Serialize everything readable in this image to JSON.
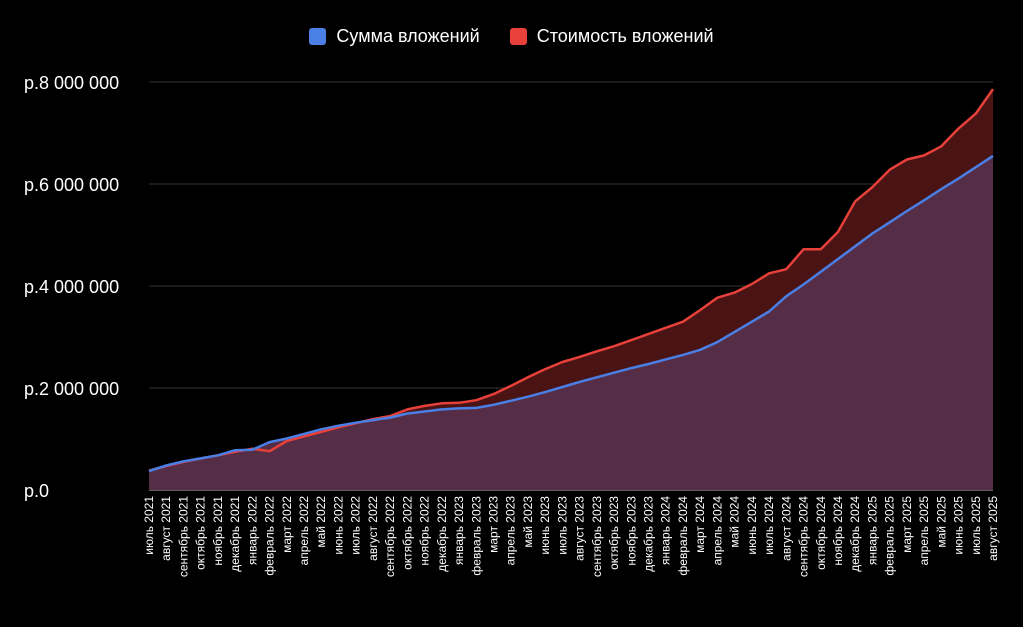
{
  "chart_data": {
    "type": "area",
    "legend_position": "top",
    "grid": true,
    "ylim": [
      0,
      8000000
    ],
    "y_ticks": [
      {
        "value": 0,
        "label": "р.0"
      },
      {
        "value": 2000000,
        "label": "р.2 000 000"
      },
      {
        "value": 4000000,
        "label": "р.4 000 000"
      },
      {
        "value": 6000000,
        "label": "р.6 000 000"
      },
      {
        "value": 8000000,
        "label": "р.8 000 000"
      }
    ],
    "categories": [
      "июль 2021",
      "август 2021",
      "сентябрь 2021",
      "октябрь 2021",
      "ноябрь 2021",
      "декабрь 2021",
      "январь 2022",
      "февраль 2022",
      "март 2022",
      "апрель 2022",
      "май 2022",
      "июнь 2022",
      "июль 2022",
      "август 2022",
      "сентябрь 2022",
      "октябрь 2022",
      "ноябрь 2022",
      "декабрь 2022",
      "январь 2023",
      "февраль 2023",
      "март 2023",
      "апрель 2023",
      "май 2023",
      "июнь 2023",
      "июль 2023",
      "август 2023",
      "сентябрь 2023",
      "октябрь 2023",
      "ноябрь 2023",
      "декабрь 2023",
      "январь 2024",
      "февраль 2024",
      "март 2024",
      "апрель 2024",
      "май 2024",
      "июнь 2024",
      "июль 2024",
      "август 2024",
      "сентябрь 2024",
      "октябрь 2024",
      "ноябрь 2024",
      "декабрь 2024",
      "январь 2025",
      "февраль 2025",
      "март 2025",
      "апрель 2025",
      "май 2025",
      "июнь 2025",
      "июль 2025",
      "август 2025"
    ],
    "series": [
      {
        "name": "Сумма вложений",
        "color": "#4a7fe6",
        "fill": "#552d47",
        "values": [
          370000,
          480000,
          560000,
          620000,
          680000,
          780000,
          790000,
          940000,
          1010000,
          1100000,
          1190000,
          1260000,
          1320000,
          1370000,
          1420000,
          1500000,
          1540000,
          1580000,
          1600000,
          1610000,
          1670000,
          1750000,
          1830000,
          1920000,
          2020000,
          2120000,
          2210000,
          2300000,
          2390000,
          2470000,
          2560000,
          2650000,
          2750000,
          2900000,
          3100000,
          3300000,
          3500000,
          3800000,
          4030000,
          4280000,
          4530000,
          4780000,
          5030000,
          5250000,
          5470000,
          5680000,
          5900000,
          6110000,
          6330000,
          6550000
        ]
      },
      {
        "name": "Стоимость вложений",
        "color": "#e8403a",
        "fill": "#4a1414",
        "values": [
          380000,
          470000,
          550000,
          620000,
          680000,
          750000,
          810000,
          760000,
          960000,
          1050000,
          1140000,
          1230000,
          1310000,
          1390000,
          1450000,
          1580000,
          1650000,
          1700000,
          1710000,
          1760000,
          1880000,
          2040000,
          2210000,
          2370000,
          2510000,
          2610000,
          2720000,
          2820000,
          2940000,
          3060000,
          3180000,
          3300000,
          3530000,
          3770000,
          3870000,
          4040000,
          4250000,
          4330000,
          4720000,
          4720000,
          5060000,
          5660000,
          5940000,
          6280000,
          6480000,
          6560000,
          6740000,
          7090000,
          7380000,
          7860000
        ]
      }
    ]
  }
}
